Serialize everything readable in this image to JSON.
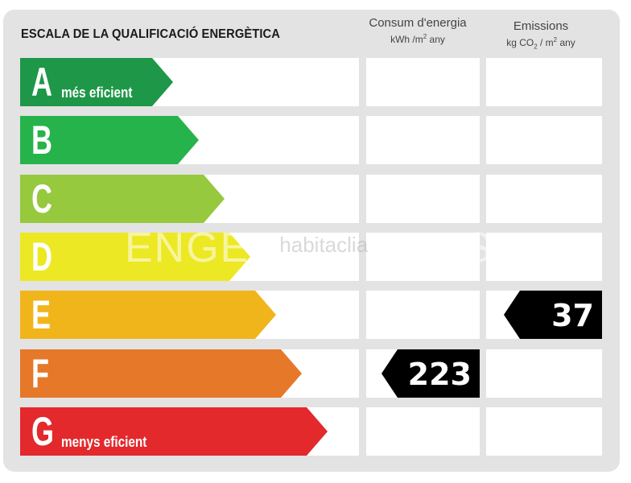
{
  "title": "ESCALA DE LA QUALIFICACIÓ ENERGÈTICA",
  "columns": {
    "consumption": {
      "line1": "Consum d'energia",
      "unit_pre": "kWh /m",
      "unit_sup": "2",
      "unit_post": " any"
    },
    "emissions": {
      "line1": "Emissions",
      "unit_pre": "kg CO",
      "unit_sub": "2",
      "unit_mid": " / m",
      "unit_sup": "2",
      "unit_post": " any"
    }
  },
  "ratings": [
    {
      "letter": "A",
      "label": "més eficient",
      "color": "#1e9748"
    },
    {
      "letter": "B",
      "label": "",
      "color": "#27b34b"
    },
    {
      "letter": "C",
      "label": "",
      "color": "#96c93d"
    },
    {
      "letter": "D",
      "label": "",
      "color": "#ede824"
    },
    {
      "letter": "E",
      "label": "",
      "color": "#f1b51c"
    },
    {
      "letter": "F",
      "label": "",
      "color": "#e6782a"
    },
    {
      "letter": "G",
      "label": "menys eficient",
      "color": "#e3292c"
    }
  ],
  "results": {
    "consumption": {
      "value": "223",
      "rating": "F"
    },
    "emissions": {
      "value": "37",
      "rating": "E"
    }
  },
  "watermark": {
    "left": "ENGEL",
    "mid": "habitaclia",
    "right": "KERS"
  }
}
